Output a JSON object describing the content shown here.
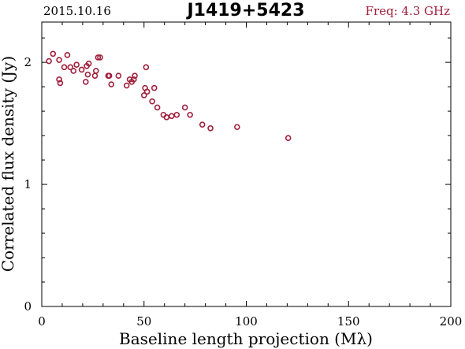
{
  "header": {
    "date": "2015.10.16",
    "source": "J1419+5423",
    "frequency": "Freq: 4.3 GHz"
  },
  "colors": {
    "points": "#a0203c",
    "frame": "#000000"
  },
  "chart_data": {
    "type": "scatter",
    "title": "J1419+5423",
    "xlabel": "Baseline length projection (Mλ)",
    "ylabel": "Correlated flux density (Jy)",
    "xlim": [
      0,
      200
    ],
    "ylim": [
      0,
      2.33
    ],
    "xticks": [
      0,
      50,
      100,
      150,
      200
    ],
    "yticks": [
      0,
      1,
      2
    ],
    "series": [
      {
        "marker": "open-circle",
        "points": [
          [
            3.5,
            2.01
          ],
          [
            5.5,
            2.07
          ],
          [
            8.5,
            2.02
          ],
          [
            8.5,
            1.86
          ],
          [
            9.0,
            1.83
          ],
          [
            11.0,
            1.96
          ],
          [
            12.5,
            2.06
          ],
          [
            14.0,
            1.96
          ],
          [
            15.5,
            1.93
          ],
          [
            17.0,
            1.98
          ],
          [
            19.5,
            1.94
          ],
          [
            21.5,
            1.84
          ],
          [
            22.0,
            1.97
          ],
          [
            22.5,
            1.9
          ],
          [
            23.0,
            1.99
          ],
          [
            26.0,
            1.89
          ],
          [
            26.5,
            1.93
          ],
          [
            27.5,
            2.04
          ],
          [
            28.5,
            2.04
          ],
          [
            32.5,
            1.89
          ],
          [
            33.0,
            1.89
          ],
          [
            34.0,
            1.82
          ],
          [
            37.5,
            1.89
          ],
          [
            41.5,
            1.81
          ],
          [
            43.0,
            1.86
          ],
          [
            44.0,
            1.84
          ],
          [
            45.0,
            1.86
          ],
          [
            45.5,
            1.89
          ],
          [
            50.0,
            1.73
          ],
          [
            50.5,
            1.79
          ],
          [
            51.0,
            1.96
          ],
          [
            51.5,
            1.76
          ],
          [
            54.0,
            1.68
          ],
          [
            55.0,
            1.79
          ],
          [
            56.5,
            1.63
          ],
          [
            59.5,
            1.57
          ],
          [
            61.0,
            1.55
          ],
          [
            63.5,
            1.56
          ],
          [
            66.0,
            1.57
          ],
          [
            70.0,
            1.63
          ],
          [
            72.5,
            1.57
          ],
          [
            78.5,
            1.49
          ],
          [
            82.5,
            1.46
          ],
          [
            95.5,
            1.47
          ],
          [
            120.5,
            1.38
          ]
        ]
      }
    ],
    "grid": false,
    "legend": "none"
  }
}
